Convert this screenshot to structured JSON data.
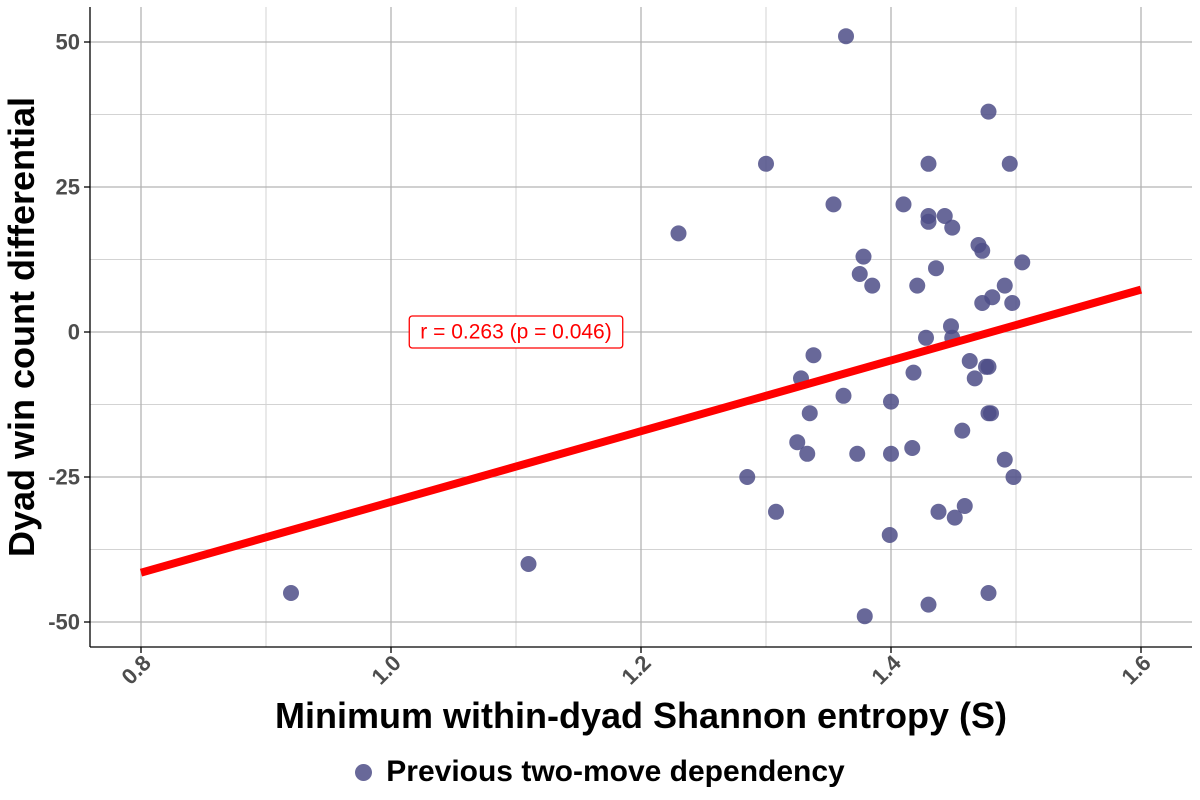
{
  "chart_data": {
    "type": "scatter",
    "xlabel": "Minimum within-dyad Shannon entropy (S)",
    "ylabel": "Dyad win count differential",
    "xlim": [
      0.8,
      1.6
    ],
    "ylim": [
      -50,
      50
    ],
    "x_ticks": [
      0.8,
      1.0,
      1.2,
      1.4,
      1.6
    ],
    "x_tick_labels": [
      "0.8",
      "1.0",
      "1.2",
      "1.4",
      "1.6"
    ],
    "y_ticks": [
      -50,
      -25,
      0,
      25,
      50
    ],
    "y_tick_labels": [
      "-50",
      "-25",
      "0",
      "25",
      "50"
    ],
    "grid": true,
    "legend_position": "bottom",
    "series": [
      {
        "name": "Previous two-move dependency",
        "color": "#4e4d87",
        "points": [
          {
            "x": 0.92,
            "y": -45
          },
          {
            "x": 1.11,
            "y": -40
          },
          {
            "x": 1.23,
            "y": 17
          },
          {
            "x": 1.285,
            "y": -25
          },
          {
            "x": 1.3,
            "y": 29
          },
          {
            "x": 1.308,
            "y": -31
          },
          {
            "x": 1.325,
            "y": -19
          },
          {
            "x": 1.328,
            "y": -8
          },
          {
            "x": 1.333,
            "y": -21
          },
          {
            "x": 1.335,
            "y": -14
          },
          {
            "x": 1.338,
            "y": -4
          },
          {
            "x": 1.354,
            "y": 22
          },
          {
            "x": 1.362,
            "y": -11
          },
          {
            "x": 1.364,
            "y": 51
          },
          {
            "x": 1.373,
            "y": -21
          },
          {
            "x": 1.375,
            "y": 10
          },
          {
            "x": 1.378,
            "y": 13
          },
          {
            "x": 1.379,
            "y": -49
          },
          {
            "x": 1.385,
            "y": 8
          },
          {
            "x": 1.399,
            "y": -35
          },
          {
            "x": 1.4,
            "y": -12
          },
          {
            "x": 1.4,
            "y": -21
          },
          {
            "x": 1.41,
            "y": 22
          },
          {
            "x": 1.417,
            "y": -20
          },
          {
            "x": 1.418,
            "y": -7
          },
          {
            "x": 1.421,
            "y": 8
          },
          {
            "x": 1.428,
            "y": -1
          },
          {
            "x": 1.43,
            "y": 29
          },
          {
            "x": 1.43,
            "y": 20
          },
          {
            "x": 1.43,
            "y": 19
          },
          {
            "x": 1.43,
            "y": -47
          },
          {
            "x": 1.436,
            "y": 11
          },
          {
            "x": 1.438,
            "y": -31
          },
          {
            "x": 1.443,
            "y": 20
          },
          {
            "x": 1.448,
            "y": 1
          },
          {
            "x": 1.449,
            "y": -1
          },
          {
            "x": 1.449,
            "y": 18
          },
          {
            "x": 1.451,
            "y": -32
          },
          {
            "x": 1.457,
            "y": -17
          },
          {
            "x": 1.459,
            "y": -30
          },
          {
            "x": 1.463,
            "y": -5
          },
          {
            "x": 1.467,
            "y": -8
          },
          {
            "x": 1.47,
            "y": 15
          },
          {
            "x": 1.473,
            "y": 14
          },
          {
            "x": 1.473,
            "y": 5
          },
          {
            "x": 1.476,
            "y": -6
          },
          {
            "x": 1.478,
            "y": -6
          },
          {
            "x": 1.478,
            "y": -14
          },
          {
            "x": 1.478,
            "y": 38
          },
          {
            "x": 1.478,
            "y": -45
          },
          {
            "x": 1.48,
            "y": -14
          },
          {
            "x": 1.481,
            "y": 6
          },
          {
            "x": 1.491,
            "y": -22
          },
          {
            "x": 1.491,
            "y": 8
          },
          {
            "x": 1.495,
            "y": 29
          },
          {
            "x": 1.497,
            "y": 5
          },
          {
            "x": 1.498,
            "y": -25
          },
          {
            "x": 1.505,
            "y": 12
          }
        ]
      }
    ],
    "regression_line": {
      "color": "#ff0000",
      "x": [
        0.8,
        1.6
      ],
      "y": [
        -41.5,
        7.3
      ]
    },
    "annotation": {
      "text": "r = 0.263 (p = 0.046)",
      "x": 1.1,
      "y": 0,
      "color": "#ff0000"
    }
  }
}
